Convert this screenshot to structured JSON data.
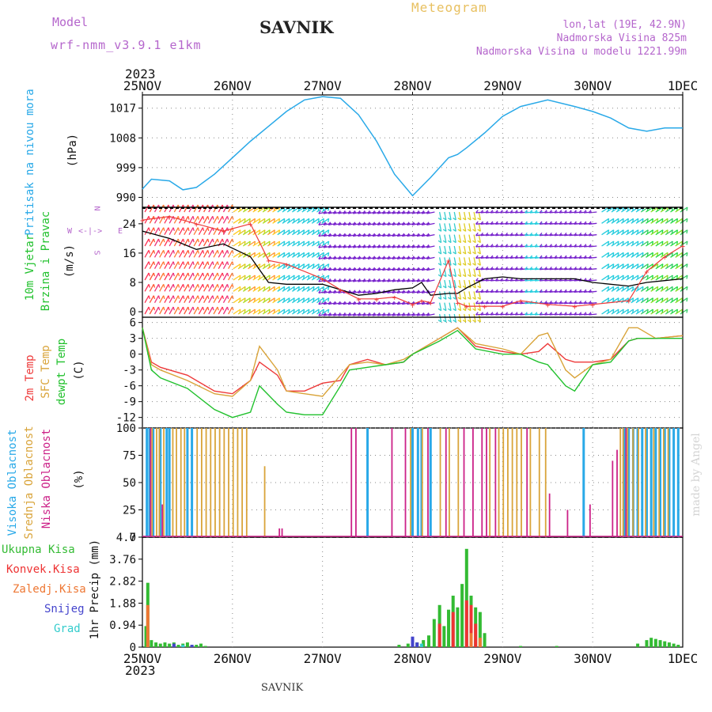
{
  "header": {
    "model_label": "Model",
    "model_name": "wrf-nmm_v3.9.1 e1km",
    "station": "SAVNIK",
    "chart_title": "Meteogram",
    "lonlat": "lon,lat (19E, 42.9N)",
    "elevation": "Nadmorska Visina 825m",
    "model_elevation": "Nadmorska Visina u modelu 1221.99m",
    "year": "2023",
    "footer_station": "SAVNIK",
    "credit": "made by Angel",
    "compass": [
      "N",
      "W",
      "<-|->",
      "E",
      "S"
    ]
  },
  "time_axis": {
    "labels": [
      "25NOV",
      "26NOV",
      "27NOV",
      "28NOV",
      "29NOV",
      "30NOV",
      "1DEC"
    ]
  },
  "panel_labels": {
    "pressure": [
      "Pritisak na nivou mora",
      "(hPa)"
    ],
    "wind": [
      "10m Vjetar",
      "Brzina i Pravac",
      "(m/s)"
    ],
    "temp": [
      "2m Temp",
      "SFC Temp",
      "dewpt Temp",
      "(C)"
    ],
    "cloud": [
      "Visoka Oblacnost",
      "Srednja Oblacnost",
      "Niska Oblacnost",
      "(%)"
    ],
    "precip": [
      "Ukupna Kisa",
      "Konvek.Kisa",
      "Zaledj.Kisa",
      "Snijeg",
      "Grad",
      "1hr Precip (mm)"
    ]
  },
  "colors": {
    "pressure": "#29a9e8",
    "temp2m": "#ee3a3a",
    "sfc": "#d9a43a",
    "dew": "#22c12e",
    "wind_speed": "#000000",
    "gust": "#ee3a3a",
    "cloud_high": "#29a9e8",
    "cloud_mid": "#d9a43a",
    "cloud_low": "#cc2288",
    "precip_total": "#33bb33",
    "precip_conv": "#ee3333",
    "precip_frz": "#ee7733",
    "precip_snow": "#4444cc",
    "precip_grad": "#33cccc"
  },
  "chart_data": [
    {
      "type": "line",
      "name": "pressure",
      "x_days": [
        0,
        0.1,
        0.3,
        0.45,
        0.6,
        0.8,
        1.0,
        1.2,
        1.4,
        1.6,
        1.8,
        2.0,
        2.2,
        2.4,
        2.6,
        2.8,
        3.0,
        3.2,
        3.4,
        3.5,
        3.6,
        3.8,
        4.0,
        4.2,
        4.5,
        4.8,
        5.0,
        5.2,
        5.4,
        5.6,
        5.8,
        6.0
      ],
      "y": [
        992.5,
        995.5,
        995,
        992.3,
        993,
        997,
        1002,
        1007,
        1011.5,
        1016,
        1019.5,
        1020.5,
        1020,
        1015,
        1007,
        997,
        990.5,
        996,
        1002,
        1003,
        1005,
        1009.5,
        1014.5,
        1017.5,
        1019.5,
        1017.5,
        1016,
        1014,
        1011,
        1010,
        1011,
        1011
      ],
      "ylabel": "(hPa)",
      "yticks": [
        990,
        999,
        1008,
        1017
      ],
      "ylim": [
        987,
        1021
      ]
    },
    {
      "type": "line",
      "name": "wind",
      "x_days": [
        0,
        0.3,
        0.6,
        0.9,
        1.2,
        1.4,
        1.6,
        2.0,
        2.2,
        2.4,
        2.6,
        2.8,
        3.0,
        3.1,
        3.2,
        3.4,
        3.5,
        3.6,
        3.8,
        4.0,
        4.2,
        4.5,
        4.8,
        5.0,
        5.4,
        5.6,
        5.8,
        6.0
      ],
      "series": [
        {
          "name": "speed",
          "y": [
            22,
            20,
            17,
            18.5,
            15,
            8,
            7.5,
            7.5,
            6,
            4.5,
            5,
            6,
            6.5,
            8,
            4.5,
            5,
            5,
            6.5,
            9,
            9.5,
            9,
            9,
            9,
            8,
            7,
            8,
            8.5,
            9
          ]
        },
        {
          "name": "gust",
          "y": [
            25,
            26,
            24,
            22,
            24,
            14,
            13,
            9,
            6,
            3.5,
            3.5,
            4,
            2,
            3,
            2.5,
            14,
            2.5,
            1.5,
            1.5,
            1.5,
            3,
            2,
            1.5,
            2,
            3,
            11,
            15,
            18
          ]
        }
      ],
      "ylabel": "(m/s)",
      "yticks": [
        0,
        8,
        16,
        24
      ],
      "ylim": [
        -1.5,
        28.5
      ]
    },
    {
      "type": "line",
      "name": "temperature",
      "x_days": [
        0,
        0.1,
        0.2,
        0.5,
        0.8,
        1.0,
        1.2,
        1.3,
        1.5,
        1.6,
        1.8,
        2.0,
        2.2,
        2.3,
        2.5,
        2.7,
        2.9,
        3.0,
        3.3,
        3.5,
        3.7,
        4.0,
        4.2,
        4.4,
        4.5,
        4.7,
        4.8,
        5.0,
        5.2,
        5.4,
        5.5,
        5.7,
        6.0
      ],
      "series": [
        {
          "name": "2m Temp",
          "y": [
            5,
            -1.5,
            -2.5,
            -4,
            -7,
            -7.5,
            -5,
            -1.5,
            -4,
            -7,
            -7,
            -5.5,
            -5,
            -2,
            -1,
            -2,
            -1.5,
            0,
            3,
            5,
            1.5,
            0.5,
            0,
            0.5,
            2,
            -1,
            -1.5,
            -1.5,
            -1,
            2.5,
            3,
            3,
            3.5
          ]
        },
        {
          "name": "SFC Temp",
          "y": [
            5,
            -2,
            -3,
            -5,
            -7.5,
            -8,
            -5,
            1.5,
            -3,
            -7,
            -7.5,
            -8,
            -4,
            -2,
            -1.5,
            -2,
            -1,
            0,
            3,
            5,
            2,
            1,
            0,
            3.5,
            4,
            -3,
            -4.5,
            -2,
            -1,
            5,
            5,
            3,
            3.5
          ]
        },
        {
          "name": "dewpt Temp",
          "y": [
            5,
            -3,
            -4.5,
            -6.5,
            -10.5,
            -12,
            -11,
            -6,
            -9.5,
            -11,
            -11.5,
            -11.5,
            -6,
            -3,
            -2.5,
            -2,
            -1.5,
            0,
            2.5,
            4.5,
            1,
            0,
            0,
            -1.5,
            -2,
            -6,
            -7,
            -2,
            -1.5,
            2.5,
            3,
            3,
            3
          ]
        }
      ],
      "ylabel": "(C)",
      "yticks": [
        -12,
        -9,
        -6,
        -3,
        0,
        3,
        6
      ],
      "ylim": [
        -14,
        7
      ]
    },
    {
      "type": "bar",
      "name": "cloud",
      "series": [
        {
          "name": "Visoka Oblacnost",
          "x_days": [
            0.05,
            0.08,
            0.12,
            0.2,
            0.27,
            0.3,
            0.5,
            0.55,
            2.5,
            3.0,
            3.06,
            3.1,
            3.2,
            4.9,
            5.35,
            5.4,
            5.45,
            5.5,
            5.55,
            5.6,
            5.65,
            5.7,
            5.75,
            5.8,
            5.85,
            5.9,
            5.95
          ],
          "values": [
            100,
            100,
            100,
            100,
            100,
            100,
            100,
            100,
            100,
            100,
            100,
            100,
            100,
            100,
            100,
            100,
            100,
            100,
            100,
            100,
            100,
            100,
            100,
            100,
            100,
            100,
            100
          ]
        },
        {
          "name": "Srednja Oblacnost",
          "x_days": [
            0.1,
            0.15,
            0.18,
            0.23,
            0.33,
            0.37,
            0.42,
            0.46,
            0.6,
            0.65,
            0.7,
            0.75,
            0.8,
            0.85,
            0.9,
            0.95,
            1.0,
            1.05,
            1.1,
            1.15,
            1.35,
            2.97,
            3.1,
            3.3,
            3.4,
            3.5,
            3.85,
            3.95,
            4.0,
            4.05,
            4.1,
            4.15,
            4.2,
            4.3,
            4.4,
            4.47,
            5.3,
            5.33,
            5.38,
            5.44,
            5.5,
            5.58,
            5.67,
            5.73,
            5.78,
            5.83
          ],
          "values": [
            100,
            100,
            100,
            100,
            100,
            100,
            100,
            100,
            100,
            100,
            100,
            100,
            100,
            100,
            100,
            100,
            100,
            100,
            100,
            100,
            65,
            100,
            100,
            100,
            100,
            100,
            100,
            100,
            100,
            100,
            100,
            100,
            100,
            100,
            100,
            100,
            100,
            100,
            100,
            100,
            100,
            100,
            100,
            100,
            100,
            100
          ]
        },
        {
          "name": "Niska Oblacnost",
          "x_days": [
            0.07,
            0.2,
            1.5,
            1.53,
            2.3,
            2.35,
            2.75,
            2.9,
            3.15,
            3.35,
            3.55,
            3.65,
            3.75,
            3.8,
            3.9,
            4.25,
            4.5,
            4.7,
            4.95,
            5.2,
            5.25,
            5.35
          ],
          "values": [
            100,
            30,
            8,
            8,
            100,
            100,
            100,
            100,
            100,
            100,
            100,
            100,
            100,
            100,
            100,
            100,
            40,
            25,
            30,
            70,
            80,
            100
          ]
        }
      ],
      "ylabel": "(%)",
      "yticks": [
        0,
        25,
        50,
        75,
        100
      ],
      "ylim": [
        0,
        100
      ]
    },
    {
      "type": "bar",
      "name": "precip",
      "series": [
        {
          "name": "Ukupna Kisa",
          "x_days": [
            0.04,
            0.06,
            0.1,
            0.15,
            0.2,
            0.25,
            0.3,
            0.35,
            0.4,
            0.45,
            0.5,
            0.55,
            0.6,
            0.65,
            0.7,
            2.85,
            2.95,
            3.05,
            3.12,
            3.18,
            3.24,
            3.3,
            3.35,
            3.4,
            3.45,
            3.5,
            3.55,
            3.6,
            3.65,
            3.7,
            3.75,
            3.8,
            4.2,
            4.6,
            5.5,
            5.6,
            5.65,
            5.7,
            5.75,
            5.8,
            5.85,
            5.9,
            5.95
          ],
          "values": [
            0.9,
            2.75,
            0.3,
            0.2,
            0.15,
            0.2,
            0.15,
            0.2,
            0.1,
            0.15,
            0.2,
            0.1,
            0.1,
            0.15,
            0.05,
            0.1,
            0.15,
            0.2,
            0.3,
            0.5,
            1.2,
            1.8,
            0.9,
            1.6,
            2.2,
            1.7,
            2.7,
            4.2,
            2.2,
            1.7,
            1.5,
            0.6,
            0.05,
            0.05,
            0.15,
            0.3,
            0.4,
            0.35,
            0.3,
            0.25,
            0.2,
            0.15,
            0.1
          ]
        },
        {
          "name": "Konvek.Kisa",
          "x_days": [
            3.3,
            3.45,
            3.6,
            3.65,
            3.7
          ],
          "values": [
            1.0,
            1.5,
            2.0,
            1.8,
            1.0
          ]
        },
        {
          "name": "Zaledj.Kisa",
          "x_days": [
            0.06,
            3.65,
            3.75
          ],
          "values": [
            1.8,
            0.6,
            0.4
          ]
        },
        {
          "name": "Snijeg",
          "x_days": [
            0.35,
            0.55,
            3.0,
            3.05
          ],
          "values": [
            0.15,
            0.1,
            0.45,
            0.2
          ]
        },
        {
          "name": "Grad",
          "x_days": [
            0.45,
            3.1
          ],
          "values": [
            0.1,
            0.15
          ]
        }
      ],
      "ylabel": "1hr Precip (mm)",
      "yticks": [
        0,
        0.94,
        1.88,
        2.82,
        3.76,
        4.7
      ],
      "ylim": [
        0,
        4.7
      ]
    }
  ]
}
